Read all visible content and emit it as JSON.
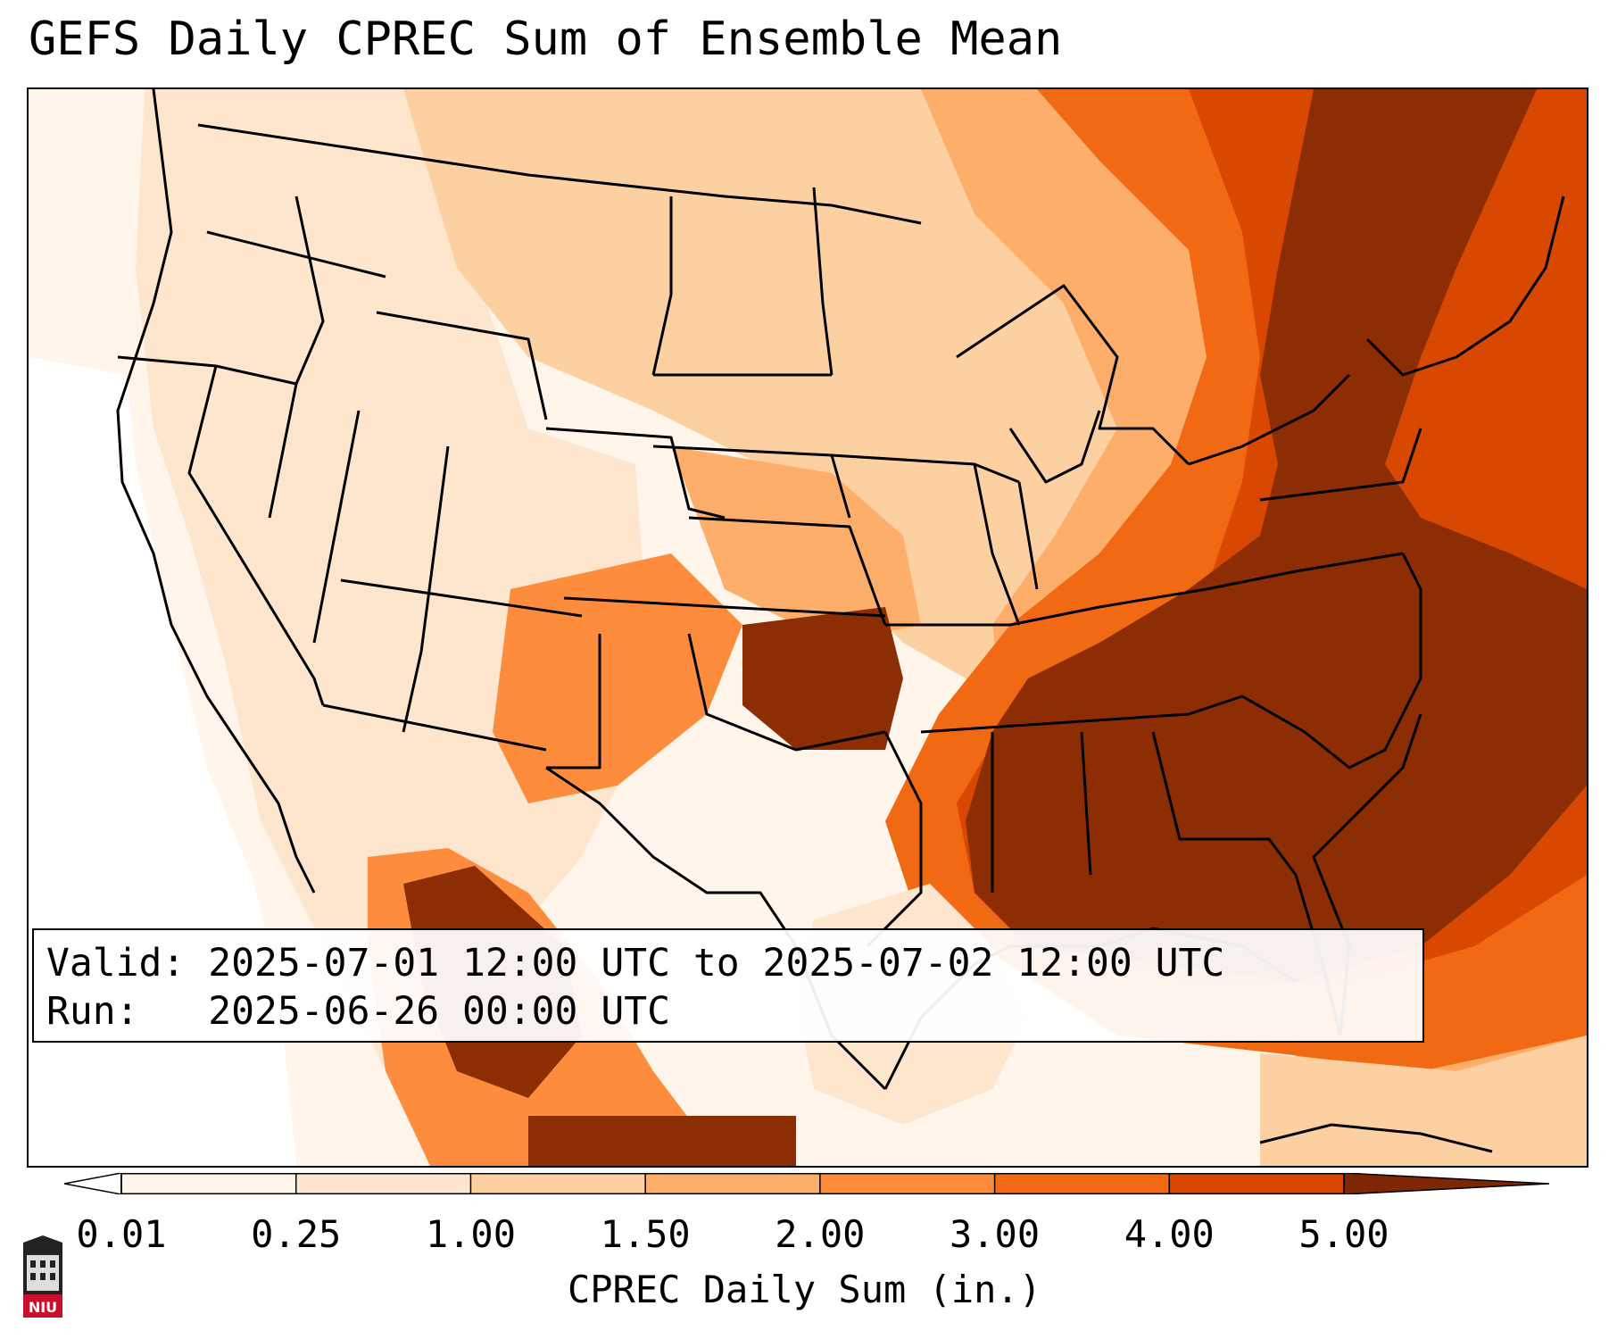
{
  "title": "GEFS Daily CPREC Sum of Ensemble Mean",
  "valid_label": "Valid:",
  "valid_text": "2025-07-01 12:00 UTC to 2025-07-02 12:00 UTC",
  "run_label": "Run:",
  "run_text": "2025-06-26 00:00 UTC",
  "colorbar": {
    "label": "CPREC Daily Sum (in.)",
    "ticks": [
      "0.01",
      "0.25",
      "1.00",
      "1.50",
      "2.00",
      "3.00",
      "4.00",
      "5.00"
    ],
    "colors": [
      "#fff5eb",
      "#fee6ce",
      "#fdd0a2",
      "#fdae6b",
      "#fd8d3c",
      "#f16913",
      "#d94801",
      "#8c2d04"
    ],
    "under_color": "#ffffff",
    "over_color": "#7f2704"
  },
  "logo_text": "NIU",
  "colors": {
    "peak": "#8c2d04",
    "high": "#d94801",
    "mid": "#f16913",
    "low": "#fdd0a2",
    "trace": "#fee6ce"
  }
}
